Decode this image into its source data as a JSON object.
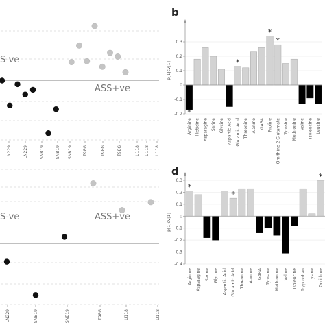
{
  "chart_data": [
    {
      "id": "a",
      "type": "scatter",
      "annotations": [
        "S-ve",
        "ASS+ve"
      ],
      "xtick_labels": [
        "LN229",
        "LN229",
        "SNB19",
        "SNB19",
        "SNB19",
        "T98G",
        "T98G",
        "T98G",
        "U118",
        "U118",
        "U118"
      ],
      "colors": {
        "negative": "#111111",
        "positive": "#c4c4c4"
      },
      "grid": true,
      "points": [
        {
          "x": 0,
          "y": 0.05,
          "group": "negative"
        },
        {
          "x": 0.5,
          "y": -0.22,
          "group": "negative"
        },
        {
          "x": 1,
          "y": 0.01,
          "group": "negative"
        },
        {
          "x": 1.5,
          "y": -0.1,
          "group": "negative"
        },
        {
          "x": 2,
          "y": -0.05,
          "group": "negative"
        },
        {
          "x": 3,
          "y": -0.52,
          "group": "negative"
        },
        {
          "x": 3.5,
          "y": -0.26,
          "group": "negative"
        },
        {
          "x": 4.5,
          "y": 0.25,
          "group": "positive"
        },
        {
          "x": 5,
          "y": 0.43,
          "group": "positive"
        },
        {
          "x": 5.5,
          "y": 0.26,
          "group": "positive"
        },
        {
          "x": 6,
          "y": 0.64,
          "group": "positive"
        },
        {
          "x": 6.5,
          "y": 0.2,
          "group": "positive"
        },
        {
          "x": 7,
          "y": 0.35,
          "group": "positive"
        },
        {
          "x": 7.5,
          "y": 0.31,
          "group": "positive"
        },
        {
          "x": 8,
          "y": 0.14,
          "group": "positive"
        }
      ]
    },
    {
      "id": "b",
      "type": "bar",
      "label": "b",
      "ylabel": "p[1]cv[1]",
      "ylim": [
        -0.2,
        0.4
      ],
      "yticks": [
        -0.2,
        -0.1,
        0,
        0.1,
        0.2,
        0.3
      ],
      "colors": {
        "positive": "#d3d3d3",
        "negative": "#000000"
      },
      "categories": [
        "Arginine",
        "Histidine",
        "Asparagine",
        "Serine",
        "Glycine",
        "Aspartic Acid",
        "Glutamic Acid",
        "Threonine",
        "Alanine",
        "GABA",
        "Proline",
        "Ornithine 2 Glutamate",
        "Tyrosine",
        "Methionine",
        "Valine",
        "Isoleucine",
        "Leucine"
      ],
      "values": [
        -0.17,
        0.18,
        0.26,
        0.2,
        0.11,
        -0.15,
        0.13,
        0.12,
        0.23,
        0.26,
        0.34,
        0.28,
        0.15,
        0.18,
        -0.13,
        -0.09,
        -0.13
      ],
      "stars": [
        0,
        6,
        10,
        11
      ]
    },
    {
      "id": "c",
      "type": "scatter",
      "annotations": [
        "S-ve",
        "ASS+ve"
      ],
      "xtick_labels": [
        "LN229",
        "SNB19",
        "SNB19",
        "T98G",
        "U118",
        "U118"
      ],
      "colors": {
        "negative": "#111111",
        "positive": "#c4c4c4"
      },
      "grid": true,
      "points": [
        {
          "x": 0,
          "y": -0.45,
          "group": "negative"
        },
        {
          "x": 1,
          "y": -0.95,
          "group": "negative"
        },
        {
          "x": 2,
          "y": -0.08,
          "group": "negative"
        },
        {
          "x": 3,
          "y": 0.72,
          "group": "positive"
        },
        {
          "x": 4,
          "y": 0.32,
          "group": "positive"
        },
        {
          "x": 5,
          "y": 0.44,
          "group": "positive"
        }
      ]
    },
    {
      "id": "d",
      "type": "bar",
      "label": "d",
      "ylabel": "p[1]cv[1]",
      "ylim": [
        -0.4,
        0.3
      ],
      "yticks": [
        -0.4,
        -0.3,
        -0.2,
        -0.1,
        0,
        0.1,
        0.2,
        0.3
      ],
      "colors": {
        "positive": "#d3d3d3",
        "negative": "#000000"
      },
      "categories": [
        "Arginine",
        "Asparagine",
        "Serine",
        "Glycine",
        "Aspartic Acid",
        "Glutamic Acid",
        "Threonine",
        "Alanine",
        "GABA",
        "Tyrosine",
        "Methionine",
        "Valine",
        "Isoleucine",
        "Tryptophan",
        "Lysine",
        "Ornithine"
      ],
      "values": [
        0.21,
        0.18,
        -0.18,
        -0.2,
        0.21,
        0.15,
        0.23,
        0.23,
        -0.14,
        -0.1,
        -0.16,
        -0.31,
        -0.08,
        0.23,
        0.02,
        0.3
      ],
      "stars": [
        0,
        5,
        15
      ]
    }
  ]
}
